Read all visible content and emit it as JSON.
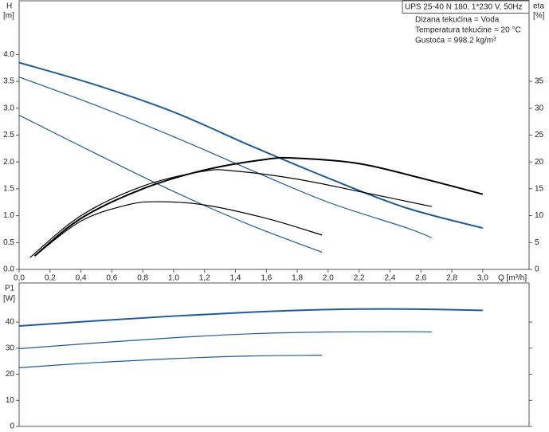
{
  "chart_data": [
    {
      "type": "line",
      "ylabel": "H",
      "ylabel_unit": "[m]",
      "y2label": "eta",
      "y2label_unit": "[%]",
      "xlabel": "Q [m³/h]",
      "info_title": "UPS 25-40 N 180, 1*230 V, 50Hz",
      "info": [
        "Dizana tekućina = Voda",
        "Temperatura tekućine = 20 °C",
        "Gustoća = 998.2 kg/m³"
      ],
      "xlim": [
        0,
        3.3
      ],
      "xticks": [
        {
          "value": 0,
          "label": "0,0"
        },
        {
          "value": 0.2,
          "label": "0,2"
        },
        {
          "value": 0.4,
          "label": "0,4"
        },
        {
          "value": 0.6,
          "label": "0,6"
        },
        {
          "value": 0.8,
          "label": "0,8"
        },
        {
          "value": 1.0,
          "label": "1,0"
        },
        {
          "value": 1.2,
          "label": "1,2"
        },
        {
          "value": 1.4,
          "label": "1,4"
        },
        {
          "value": 1.6,
          "label": "1,6"
        },
        {
          "value": 1.8,
          "label": "1,8"
        },
        {
          "value": 2.0,
          "label": "2,0"
        },
        {
          "value": 2.2,
          "label": "2,2"
        },
        {
          "value": 2.4,
          "label": "2,4"
        },
        {
          "value": 2.6,
          "label": "2,6"
        },
        {
          "value": 2.8,
          "label": "2,8"
        },
        {
          "value": 3.0,
          "label": "3,0"
        }
      ],
      "ylim": [
        0,
        5
      ],
      "yticks": [
        {
          "value": 0,
          "label": "0.0"
        },
        0.5,
        {
          "value": 1,
          "label": "1.0"
        },
        1.5,
        {
          "value": 2,
          "label": "2.0"
        },
        2.5,
        {
          "value": 3,
          "label": "3.0"
        },
        3.5,
        {
          "value": 4,
          "label": "4.0"
        }
      ],
      "y2lim": [
        0,
        50
      ],
      "y2ticks": [
        0,
        5,
        10,
        15,
        20,
        25,
        30,
        35
      ],
      "series": [
        {
          "color": "#1f5b9a",
          "x": [
            0,
            0.5,
            1.0,
            1.5,
            2.0,
            2.5,
            3.0
          ],
          "values": [
            3.85,
            3.43,
            2.93,
            2.3,
            1.7,
            1.15,
            0.77
          ]
        },
        {
          "color": "#1f5b9a",
          "x": [
            0,
            0.5,
            1.0,
            1.5,
            2.0,
            2.5,
            2.67
          ],
          "values": [
            3.58,
            3.05,
            2.47,
            1.85,
            1.25,
            0.78,
            0.59
          ]
        },
        {
          "color": "#1f5b9a",
          "x": [
            0,
            0.5,
            1.0,
            1.5,
            1.96
          ],
          "values": [
            2.87,
            2.15,
            1.45,
            0.82,
            0.32
          ]
        },
        {
          "color": "#000000",
          "axis": "y2",
          "x": [
            0.1,
            0.4,
            0.8,
            1.2,
            1.6,
            1.8,
            2.2,
            2.6,
            3.0
          ],
          "values": [
            2.5,
            9.5,
            15,
            18.5,
            20.5,
            20.7,
            19.7,
            17,
            14
          ]
        },
        {
          "color": "#000000",
          "axis": "y2",
          "x": [
            0.07,
            0.4,
            0.8,
            1.2,
            1.4,
            1.8,
            2.2,
            2.67
          ],
          "values": [
            2.2,
            10,
            15.5,
            18.3,
            18.3,
            16.8,
            14.5,
            11.7
          ]
        },
        {
          "color": "#000000",
          "axis": "y2",
          "x": [
            0.1,
            0.4,
            0.7,
            0.9,
            1.2,
            1.6,
            1.96
          ],
          "values": [
            2.5,
            9,
            12,
            12.6,
            12,
            9.5,
            6.4
          ]
        }
      ]
    },
    {
      "type": "line",
      "ylabel": "P1",
      "ylabel_unit": "[W]",
      "xlim": [
        0,
        3.3
      ],
      "ylim": [
        0,
        55
      ],
      "yticks": [
        0,
        10,
        20,
        30,
        40
      ],
      "series": [
        {
          "color": "#1f5b9a",
          "x": [
            0,
            0.5,
            1.0,
            1.5,
            2.0,
            2.5,
            3.0
          ],
          "values": [
            38.5,
            40.5,
            42.3,
            43.8,
            44.8,
            45,
            44.5
          ]
        },
        {
          "color": "#1f5b9a",
          "x": [
            0,
            0.5,
            1.0,
            1.5,
            2.0,
            2.5,
            2.67
          ],
          "values": [
            29.8,
            32,
            34,
            35.5,
            36.2,
            36.3,
            36.2
          ]
        },
        {
          "color": "#1f5b9a",
          "x": [
            0,
            0.5,
            1.0,
            1.5,
            1.96
          ],
          "values": [
            22.5,
            24.5,
            26,
            27,
            27.3
          ]
        }
      ]
    }
  ]
}
